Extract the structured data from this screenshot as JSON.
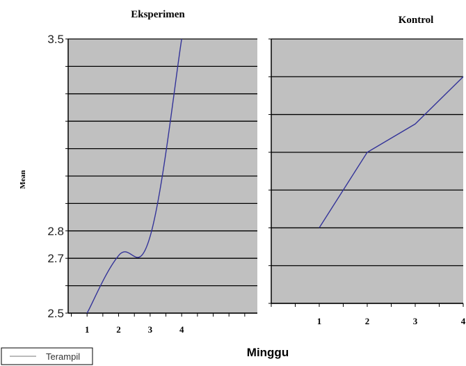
{
  "xlabel": "Minggu",
  "ylabel": "Mean",
  "legend": {
    "label": "Terampil",
    "position": "bottom-left"
  },
  "colors": {
    "plot_bg": "#c0c0c0",
    "line": "#333399",
    "grid": "#000000"
  },
  "chart_data": [
    {
      "type": "line",
      "title": "Eksperimen",
      "x": [
        1,
        2,
        3,
        4
      ],
      "x_tick_labels": [
        "1",
        "2",
        "3",
        "4"
      ],
      "y": [
        2.5,
        2.71,
        2.78,
        3.5
      ],
      "ylim": [
        2.5,
        3.5
      ],
      "y_tick_labels": [
        {
          "value": 3.5,
          "label": "3.5"
        },
        {
          "value": 2.8,
          "label": "2.8"
        },
        {
          "value": 2.7,
          "label": "2.7"
        },
        {
          "value": 2.5,
          "label": "2.5"
        }
      ],
      "series": [
        {
          "name": "Terampil",
          "x": [
            1,
            2,
            3,
            4
          ],
          "y": [
            2.5,
            2.71,
            2.78,
            3.5
          ]
        }
      ],
      "grid": true
    },
    {
      "type": "line",
      "title": "Kontrol",
      "x": [
        1,
        2,
        3,
        4
      ],
      "x_tick_labels": [
        "1",
        "2",
        "3",
        "4"
      ],
      "y": [
        2.8,
        3.2,
        3.35,
        3.6
      ],
      "ylim": [
        2.4,
        3.8
      ],
      "y_tick_labels": [],
      "series": [
        {
          "name": "Terampil",
          "x": [
            1,
            2,
            3,
            4
          ],
          "y": [
            2.8,
            3.2,
            3.35,
            3.6
          ]
        }
      ],
      "grid": true
    }
  ]
}
